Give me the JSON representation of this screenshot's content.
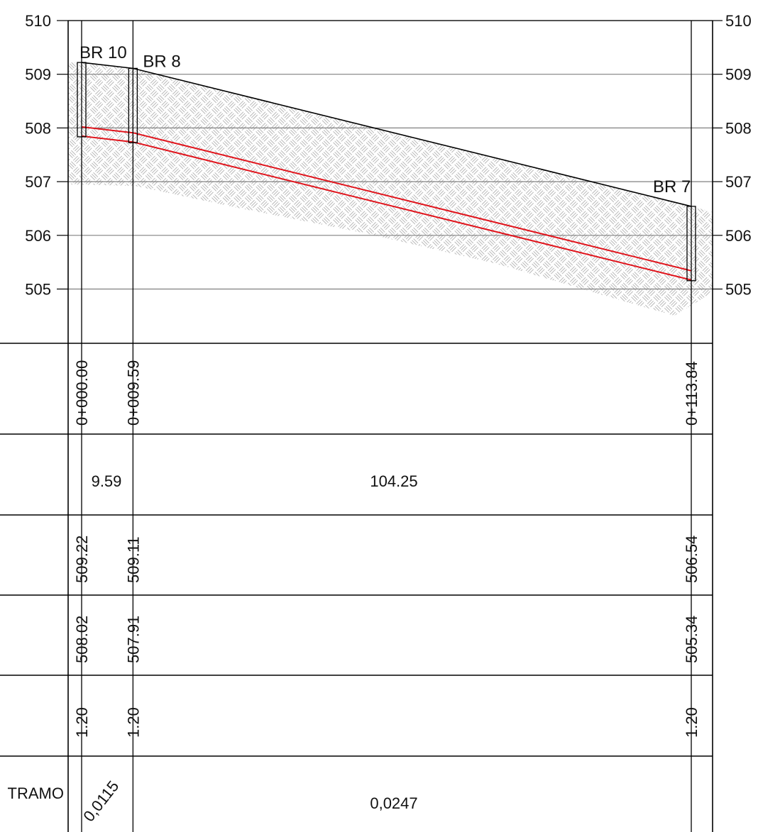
{
  "elevation_ticks": [
    "510",
    "509",
    "508",
    "507",
    "506",
    "505"
  ],
  "manholes": [
    {
      "name": "BR 10",
      "chainage": "0+000.00",
      "ground": "509.22",
      "invert": "508.02",
      "depth": "1.20"
    },
    {
      "name": "BR 8",
      "chainage": "0+009.59",
      "ground": "509.11",
      "invert": "507.91",
      "depth": "1.20"
    },
    {
      "name": "BR 7",
      "chainage": "0+113.84",
      "ground": "506.54",
      "invert": "505.34",
      "depth": "1.20"
    }
  ],
  "segment_lengths": [
    "9.59",
    "104.25"
  ],
  "segment_slopes": [
    "0,0115",
    "0,0247"
  ],
  "table_row_label": "TRAMO",
  "colors": {
    "pipe": "#e0141c",
    "terrain_line": "#000000",
    "grid": "#808080",
    "hatch": "#b9b9b9"
  }
}
